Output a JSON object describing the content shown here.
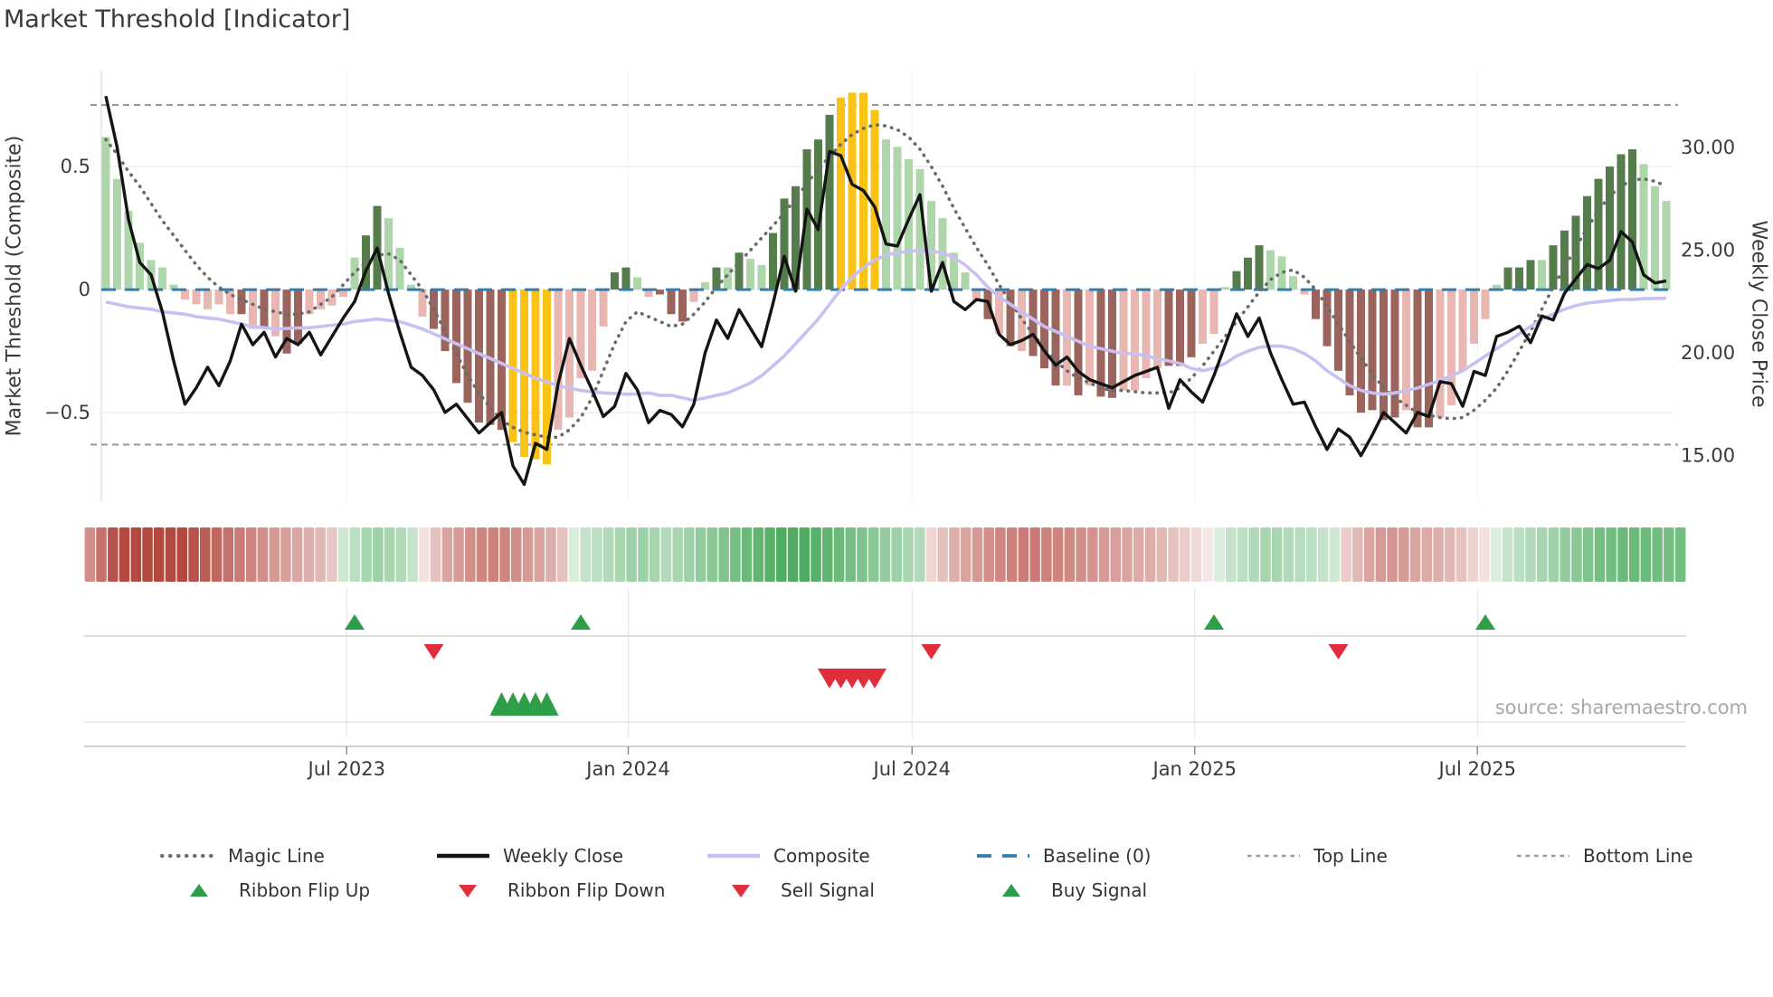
{
  "title": "Market Threshold [Indicator]",
  "source": "source: sharemaestro.com",
  "axes": {
    "left_label": "Market Threshold (Composite)",
    "right_label": "Weekly Close Price",
    "left_ticks": [
      {
        "value": 0.5,
        "label": "0.5"
      },
      {
        "value": 0.0,
        "label": "0"
      },
      {
        "value": -0.5,
        "label": "−0.5"
      }
    ],
    "right_ticks": [
      {
        "value": 30,
        "label": "30.00"
      },
      {
        "value": 25,
        "label": "25.00"
      },
      {
        "value": 20,
        "label": "20.00"
      },
      {
        "value": 15,
        "label": "15.00"
      }
    ],
    "x_ticks": [
      {
        "week": 21.3,
        "label": "Jul 2023"
      },
      {
        "week": 46.2,
        "label": "Jan 2024"
      },
      {
        "week": 71.3,
        "label": "Jul 2024"
      },
      {
        "week": 96.3,
        "label": "Jan 2025"
      },
      {
        "week": 121.3,
        "label": "Jul 2025"
      }
    ],
    "left_ylim": [
      -0.86,
      0.89
    ],
    "right_ylim": [
      12.78,
      33.74
    ]
  },
  "chart_data": {
    "type": "bar",
    "subtype": "weekly combo bar+line indicator",
    "weeks": 139,
    "title": "Market Threshold [Indicator]",
    "xlabel": "",
    "ylabel_left": "Market Threshold (Composite)",
    "ylabel_right": "Weekly Close Price",
    "top_line": 0.75,
    "bottom_line": -0.63,
    "baseline": 0,
    "bar_values": [
      0.62,
      0.45,
      0.32,
      0.19,
      0.12,
      0.09,
      0.02,
      -0.04,
      -0.06,
      -0.08,
      -0.06,
      -0.1,
      -0.1,
      -0.16,
      -0.16,
      -0.19,
      -0.26,
      -0.22,
      -0.1,
      -0.08,
      -0.065,
      -0.03,
      0.13,
      0.22,
      0.34,
      0.29,
      0.17,
      0.02,
      -0.11,
      -0.16,
      -0.25,
      -0.38,
      -0.46,
      -0.54,
      -0.55,
      -0.57,
      -0.62,
      -0.68,
      -0.69,
      -0.71,
      -0.57,
      -0.52,
      -0.36,
      -0.33,
      -0.15,
      0.07,
      0.09,
      0.05,
      -0.03,
      -0.02,
      -0.1,
      -0.13,
      -0.05,
      0.03,
      0.09,
      0.09,
      0.15,
      0.125,
      0.1,
      0.23,
      0.37,
      0.42,
      0.57,
      0.61,
      0.71,
      0.78,
      0.8,
      0.8,
      0.73,
      0.61,
      0.58,
      0.53,
      0.49,
      0.36,
      0.29,
      0.15,
      0.07,
      -0.05,
      -0.12,
      -0.18,
      -0.23,
      -0.25,
      -0.27,
      -0.32,
      -0.39,
      -0.39,
      -0.43,
      -0.39,
      -0.435,
      -0.44,
      -0.41,
      -0.41,
      -0.36,
      -0.32,
      -0.31,
      -0.31,
      -0.275,
      -0.22,
      -0.18,
      0.01,
      0.075,
      0.13,
      0.18,
      0.16,
      0.135,
      0.055,
      -0.02,
      -0.12,
      -0.23,
      -0.33,
      -0.43,
      -0.5,
      -0.49,
      -0.53,
      -0.52,
      -0.49,
      -0.56,
      -0.56,
      -0.52,
      -0.47,
      -0.33,
      -0.22,
      -0.12,
      0.02,
      0.09,
      0.09,
      0.12,
      0.12,
      0.18,
      0.24,
      0.3,
      0.38,
      0.45,
      0.5,
      0.55,
      0.57,
      0.51,
      0.42,
      0.36
    ],
    "bar_colors": "lllllllpppppmpmpmmpppplddlllpmmmmmmmyyyypppppddlpmmmpldldllddddddyyyyllllllllpmpmpmmmpmpmmppppmmmppldddlllpmmmmmmmmpmmpppppldddlddddddddlll",
    "weekly_close": [
      32.5,
      30.0,
      26.5,
      24.4,
      23.8,
      22.0,
      19.6,
      17.5,
      18.3,
      19.3,
      18.4,
      19.6,
      21.4,
      20.4,
      21.0,
      19.8,
      20.7,
      20.4,
      21.0,
      19.9,
      20.8,
      21.7,
      22.5,
      24.0,
      25.1,
      22.9,
      21.0,
      19.3,
      18.9,
      18.2,
      17.1,
      17.5,
      16.8,
      16.1,
      16.6,
      17.1,
      14.5,
      13.6,
      15.6,
      15.3,
      18.5,
      20.7,
      19.4,
      18.2,
      16.9,
      17.4,
      19.0,
      18.2,
      16.6,
      17.2,
      17.0,
      16.4,
      17.5,
      20.0,
      21.6,
      20.7,
      22.1,
      21.2,
      20.3,
      22.4,
      24.7,
      23.0,
      27.0,
      26.0,
      29.8,
      29.6,
      28.2,
      27.9,
      27.1,
      25.3,
      25.2,
      26.5,
      27.7,
      23.0,
      24.4,
      22.5,
      22.1,
      22.6,
      22.5,
      20.9,
      20.4,
      20.6,
      20.9,
      20.1,
      19.4,
      19.8,
      19.1,
      18.7,
      18.5,
      18.3,
      18.6,
      18.9,
      19.1,
      19.3,
      17.3,
      18.7,
      18.1,
      17.6,
      18.9,
      20.4,
      21.9,
      20.8,
      21.7,
      20.0,
      18.7,
      17.5,
      17.6,
      16.4,
      15.3,
      16.3,
      15.9,
      15.0,
      16.0,
      17.1,
      16.6,
      16.1,
      17.1,
      16.9,
      18.6,
      18.5,
      17.4,
      19.1,
      18.9,
      20.8,
      21.0,
      21.3,
      20.5,
      21.8,
      21.6,
      22.9,
      23.6,
      24.3,
      24.1,
      24.5,
      25.9,
      25.4,
      23.8,
      23.4,
      23.5
    ],
    "magic_line": [
      0.61,
      0.55,
      0.48,
      0.42,
      0.35,
      0.28,
      0.22,
      0.16,
      0.1,
      0.05,
      0.01,
      -0.02,
      -0.04,
      -0.06,
      -0.08,
      -0.09,
      -0.1,
      -0.1,
      -0.09,
      -0.06,
      -0.03,
      0.02,
      0.07,
      0.11,
      0.14,
      0.145,
      0.12,
      0.06,
      0.0,
      -0.08,
      -0.17,
      -0.26,
      -0.35,
      -0.42,
      -0.48,
      -0.53,
      -0.56,
      -0.58,
      -0.59,
      -0.6,
      -0.6,
      -0.57,
      -0.52,
      -0.44,
      -0.33,
      -0.22,
      -0.13,
      -0.09,
      -0.11,
      -0.13,
      -0.15,
      -0.14,
      -0.1,
      -0.05,
      0.01,
      0.06,
      0.11,
      0.16,
      0.21,
      0.26,
      0.31,
      0.37,
      0.43,
      0.49,
      0.54,
      0.59,
      0.63,
      0.655,
      0.67,
      0.665,
      0.65,
      0.62,
      0.57,
      0.5,
      0.42,
      0.33,
      0.25,
      0.17,
      0.1,
      0.02,
      -0.05,
      -0.12,
      -0.18,
      -0.24,
      -0.29,
      -0.33,
      -0.36,
      -0.38,
      -0.4,
      -0.41,
      -0.41,
      -0.415,
      -0.42,
      -0.42,
      -0.42,
      -0.4,
      -0.36,
      -0.31,
      -0.25,
      -0.19,
      -0.13,
      -0.07,
      -0.01,
      0.04,
      0.07,
      0.08,
      0.05,
      0.0,
      -0.07,
      -0.14,
      -0.21,
      -0.28,
      -0.34,
      -0.4,
      -0.44,
      -0.47,
      -0.5,
      -0.51,
      -0.52,
      -0.525,
      -0.52,
      -0.49,
      -0.45,
      -0.4,
      -0.33,
      -0.25,
      -0.17,
      -0.08,
      0.01,
      0.09,
      0.17,
      0.25,
      0.32,
      0.38,
      0.42,
      0.445,
      0.45,
      0.44,
      0.42
    ],
    "composite": [
      -0.05,
      -0.06,
      -0.07,
      -0.075,
      -0.08,
      -0.09,
      -0.095,
      -0.1,
      -0.11,
      -0.115,
      -0.12,
      -0.13,
      -0.14,
      -0.15,
      -0.155,
      -0.16,
      -0.158,
      -0.156,
      -0.155,
      -0.15,
      -0.145,
      -0.14,
      -0.13,
      -0.125,
      -0.12,
      -0.125,
      -0.13,
      -0.145,
      -0.16,
      -0.18,
      -0.2,
      -0.22,
      -0.24,
      -0.26,
      -0.28,
      -0.3,
      -0.32,
      -0.34,
      -0.36,
      -0.375,
      -0.39,
      -0.4,
      -0.41,
      -0.415,
      -0.42,
      -0.422,
      -0.425,
      -0.424,
      -0.42,
      -0.43,
      -0.43,
      -0.44,
      -0.45,
      -0.44,
      -0.43,
      -0.42,
      -0.4,
      -0.38,
      -0.35,
      -0.31,
      -0.27,
      -0.22,
      -0.17,
      -0.12,
      -0.06,
      0.0,
      0.05,
      0.09,
      0.12,
      0.14,
      0.15,
      0.155,
      0.16,
      0.155,
      0.15,
      0.13,
      0.1,
      0.06,
      0.01,
      -0.03,
      -0.06,
      -0.09,
      -0.12,
      -0.15,
      -0.17,
      -0.19,
      -0.21,
      -0.23,
      -0.24,
      -0.25,
      -0.26,
      -0.26,
      -0.27,
      -0.28,
      -0.29,
      -0.3,
      -0.32,
      -0.33,
      -0.32,
      -0.3,
      -0.27,
      -0.25,
      -0.235,
      -0.23,
      -0.23,
      -0.24,
      -0.26,
      -0.29,
      -0.33,
      -0.36,
      -0.39,
      -0.41,
      -0.42,
      -0.425,
      -0.42,
      -0.41,
      -0.4,
      -0.385,
      -0.37,
      -0.35,
      -0.33,
      -0.3,
      -0.27,
      -0.24,
      -0.21,
      -0.18,
      -0.15,
      -0.12,
      -0.1,
      -0.08,
      -0.065,
      -0.055,
      -0.05,
      -0.045,
      -0.04,
      -0.04,
      -0.037,
      -0.036,
      -0.035
    ],
    "ribbon": [
      -0.55,
      -0.7,
      -0.85,
      -0.9,
      -0.9,
      -0.9,
      -0.9,
      -0.9,
      -0.9,
      -0.85,
      -0.8,
      -0.75,
      -0.7,
      -0.65,
      -0.6,
      -0.55,
      -0.5,
      -0.47,
      -0.44,
      -0.4,
      -0.35,
      -0.28,
      0.25,
      0.35,
      0.45,
      0.5,
      0.45,
      0.4,
      0.3,
      -0.15,
      -0.3,
      -0.45,
      -0.5,
      -0.55,
      -0.6,
      -0.62,
      -0.6,
      -0.55,
      -0.5,
      -0.45,
      -0.4,
      -0.3,
      0.2,
      0.3,
      0.35,
      0.4,
      0.45,
      0.5,
      0.5,
      0.45,
      0.4,
      0.45,
      0.5,
      0.55,
      0.6,
      0.65,
      0.7,
      0.75,
      0.8,
      0.85,
      0.9,
      0.9,
      0.9,
      0.85,
      0.8,
      0.75,
      0.7,
      0.65,
      0.6,
      0.55,
      0.5,
      0.45,
      0.4,
      -0.2,
      -0.3,
      -0.4,
      -0.45,
      -0.5,
      -0.55,
      -0.6,
      -0.62,
      -0.65,
      -0.65,
      -0.62,
      -0.6,
      -0.58,
      -0.55,
      -0.52,
      -0.5,
      -0.48,
      -0.45,
      -0.42,
      -0.4,
      -0.35,
      -0.3,
      -0.25,
      -0.18,
      -0.12,
      0.2,
      0.3,
      0.35,
      0.4,
      0.45,
      0.45,
      0.4,
      0.38,
      0.35,
      0.3,
      0.25,
      -0.25,
      -0.35,
      -0.45,
      -0.5,
      -0.52,
      -0.5,
      -0.45,
      -0.42,
      -0.4,
      -0.35,
      -0.3,
      -0.22,
      -0.15,
      0.2,
      0.3,
      0.35,
      0.4,
      0.45,
      0.5,
      0.55,
      0.6,
      0.65,
      0.7,
      0.72,
      0.75,
      0.75,
      0.75,
      0.72,
      0.7,
      0.72
    ],
    "signals": {
      "ribbon_flip_up_weeks": [
        22,
        42,
        98,
        122
      ],
      "ribbon_flip_down_weeks": [
        29,
        73,
        109
      ],
      "buy_weeks": [
        35,
        36,
        37,
        38,
        39
      ],
      "sell_weeks": [
        64,
        65,
        66,
        67,
        68
      ]
    }
  },
  "legend": {
    "row1": [
      {
        "label": "Magic Line",
        "type": "dotted",
        "color": "#6b6b6b"
      },
      {
        "label": "Weekly Close",
        "type": "solid",
        "color": "#141414"
      },
      {
        "label": "Composite",
        "type": "solid",
        "color": "#c9c0f2"
      },
      {
        "label": "Baseline (0)",
        "type": "dashed",
        "color": "#2e7eb3"
      },
      {
        "label": "Top Line",
        "type": "dash-small",
        "color": "#999999"
      },
      {
        "label": "Bottom Line",
        "type": "dash-small",
        "color": "#999999"
      }
    ],
    "row2": [
      {
        "label": "Ribbon Flip Up",
        "type": "triangle-up",
        "color": "#2f9e48"
      },
      {
        "label": "Ribbon Flip Down",
        "type": "triangle-down",
        "color": "#e12e3c"
      },
      {
        "label": "Sell Signal",
        "type": "triangle-down",
        "color": "#e12e3c"
      },
      {
        "label": "Buy Signal",
        "type": "triangle-up",
        "color": "#2f9e48"
      }
    ]
  },
  "colors": {
    "bar_color_map": {
      "d": "#547d4b",
      "l": "#afd6aa",
      "m": "#9b655d",
      "p": "#e9b7b2",
      "y": "#fbc216"
    },
    "ribbon_red": "#ad342a",
    "ribbon_green": "#3ba34e",
    "weekly_close": "#141414",
    "magic": "#6b6b6b",
    "composite": "#c9c0f2",
    "baseline": "#2e7eb3",
    "band_lines": "#999999",
    "grid": "#ebebf2",
    "signal_up": "#2f9e48",
    "signal_down": "#e12e3c",
    "axis_text": "#3a3a3a",
    "source_text": "#a8a8a8"
  }
}
